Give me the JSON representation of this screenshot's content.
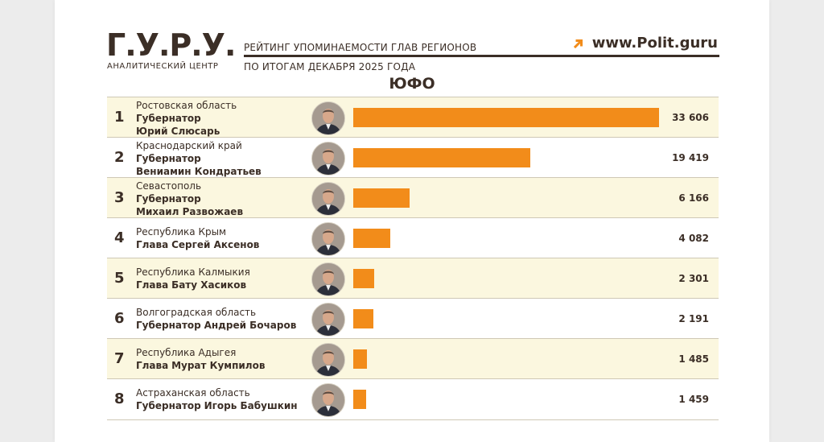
{
  "header": {
    "logo": "Г.У.Р.У.",
    "logo_sub": "АНАЛИТИЧЕСКИЙ ЦЕНТР",
    "title_line1": "РЕЙТИНГ УПОМИНАЕМОСТИ ГЛАВ РЕГИОНОВ",
    "title_line2": "ПО ИТОГАМ ДЕКАБРЯ 2025 ГОДА",
    "site": "www.Polit.guru",
    "icon": "arrow-up-right-icon"
  },
  "region": "ЮФО",
  "colors": {
    "bar": "#f28c1a",
    "text": "#3b2e26",
    "shade": "#fbf7df"
  },
  "chart_data": {
    "type": "bar",
    "orientation": "horizontal",
    "categories": [
      "Ростовская область",
      "Краснодарский край",
      "Севастополь",
      "Республика Крым",
      "Республика Калмыкия",
      "Волгоградская область",
      "Республика Адыгея",
      "Астраханская область"
    ],
    "values": [
      33606,
      19419,
      6166,
      4082,
      2301,
      2191,
      1485,
      1459
    ],
    "rows": [
      {
        "rank": "1",
        "region": "Ростовская область",
        "position": "Губернатор",
        "name": "Юрий Слюсарь",
        "value": 33606,
        "value_label": "33 606"
      },
      {
        "rank": "2",
        "region": "Краснодарский край",
        "position": "Губернатор",
        "name": "Вениамин Кондратьев",
        "value": 19419,
        "value_label": "19 419"
      },
      {
        "rank": "3",
        "region": "Севастополь",
        "position": "Губернатор",
        "name": "Михаил Развожаев",
        "value": 6166,
        "value_label": "6 166"
      },
      {
        "rank": "4",
        "region": "Республика Крым",
        "position": "Глава",
        "name": "Сергей Аксенов",
        "value": 4082,
        "value_label": "4 082"
      },
      {
        "rank": "5",
        "region": "Республика Калмыкия",
        "position": "Глава",
        "name": "Бату Хасиков",
        "value": 2301,
        "value_label": "2 301"
      },
      {
        "rank": "6",
        "region": "Волгоградская область",
        "position": "Губернатор",
        "name": "Андрей Бочаров",
        "value": 2191,
        "value_label": "2 191"
      },
      {
        "rank": "7",
        "region": "Республика Адыгея",
        "position": "Глава",
        "name": "Мурат Кумпилов",
        "value": 1485,
        "value_label": "1 485"
      },
      {
        "rank": "8",
        "region": "Астраханская область",
        "position": "Губернатор",
        "name": "Игорь Бабушкин",
        "value": 1459,
        "value_label": "1 459"
      }
    ]
  }
}
